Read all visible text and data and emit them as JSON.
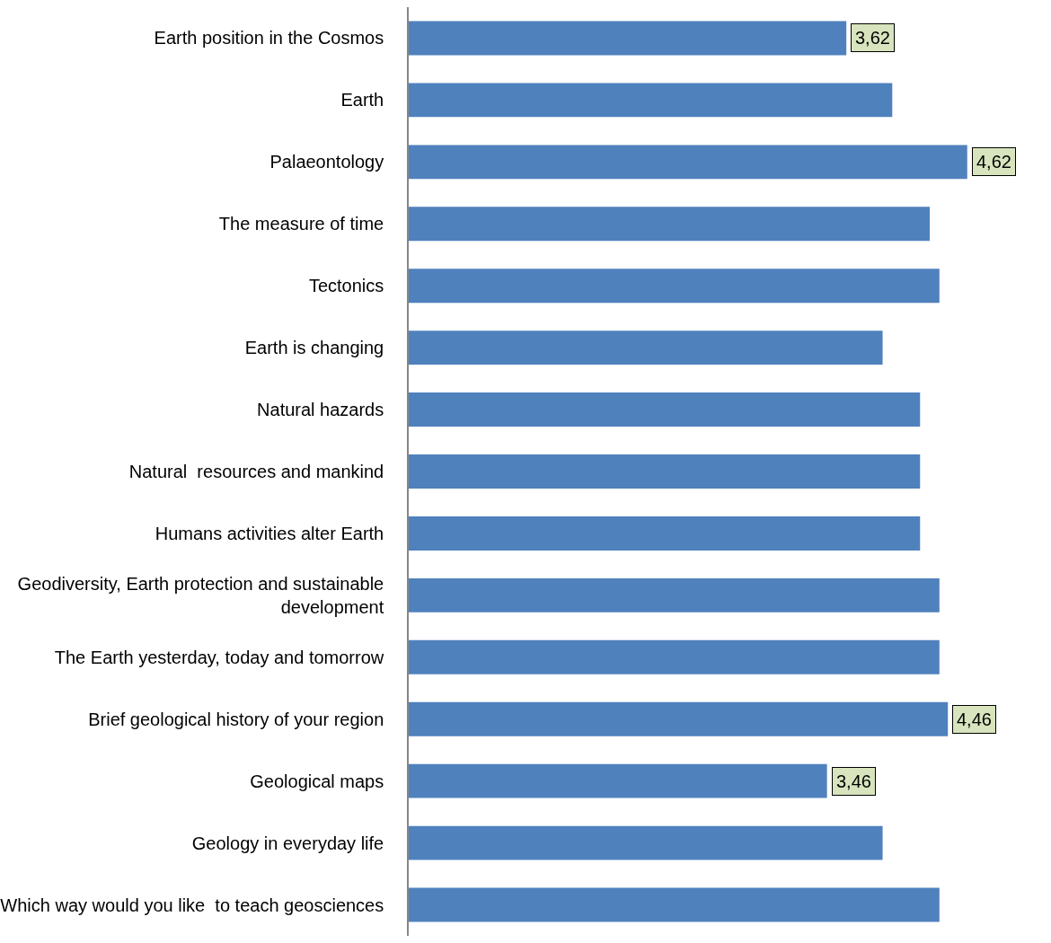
{
  "chart_data": {
    "type": "bar",
    "orientation": "horizontal",
    "categories": [
      "Earth position in the Cosmos",
      "Earth",
      "Palaeontology",
      "The measure of time",
      "Tectonics",
      "Earth is changing",
      "Natural hazards",
      "Natural  resources and mankind",
      "Humans activities alter Earth",
      "Geodiversity, Earth protection and sustainable development",
      "The Earth yesterday, today and tomorrow",
      "Brief geological history of your region",
      "Geological maps",
      "Geology in everyday life",
      "Which way would you like  to teach geosciences"
    ],
    "values": [
      3.62,
      4.0,
      4.62,
      4.31,
      4.39,
      3.92,
      4.23,
      4.23,
      4.23,
      4.39,
      4.39,
      4.46,
      3.46,
      3.92,
      4.39
    ],
    "value_labels": [
      "3,62",
      null,
      "4,62",
      null,
      null,
      null,
      null,
      null,
      null,
      null,
      null,
      "4,46",
      "3,46",
      null,
      null
    ],
    "color": "#4f81bd"
  }
}
